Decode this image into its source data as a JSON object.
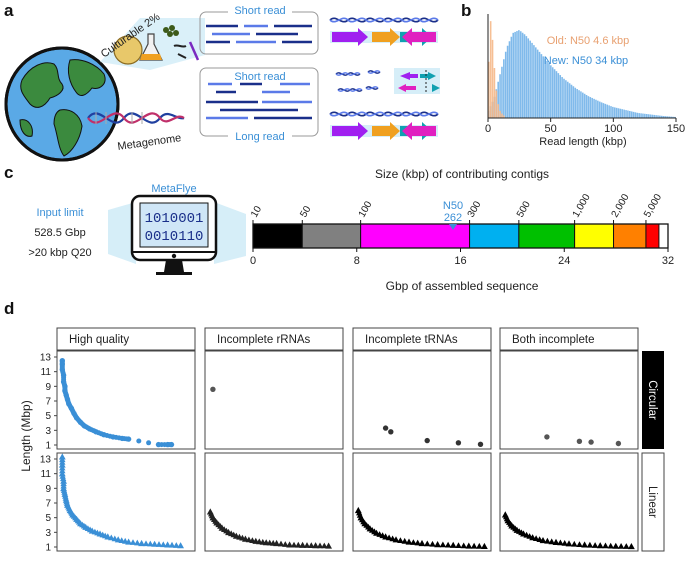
{
  "panels": {
    "a": {
      "label": "a",
      "culturable": "Culturable 2%",
      "metagenome": "Metagenome",
      "short_read_1": "Short read",
      "short_read_2": "Short read",
      "long_read": "Long read"
    },
    "b": {
      "label": "b",
      "legend_old": "Old: N50 4.6 kbp",
      "legend_new": "New: N50 34 kbp",
      "xlabel": "Read length (kbp)",
      "x_ticks": [
        "0",
        "50",
        "100",
        "150"
      ]
    },
    "c": {
      "label": "c",
      "input_limit": "Input limit",
      "input_gbp": "528.5 Gbp",
      "input_q": ">20 kbp Q20",
      "software": "MetaFlye",
      "binary_1": "1010001",
      "binary_2": "0010110",
      "top_title": "Size (kbp) of contributing contigs",
      "n50_label": "N50",
      "n50_value": "262",
      "xlabel": "Gbp of assembled sequence"
    },
    "d": {
      "label": "d",
      "ylabel": "Length (Mbp)",
      "y_ticks": [
        "13",
        "11",
        "9",
        "7",
        "5",
        "3",
        "1"
      ],
      "columns": [
        "High quality",
        "Incomplete rRNAs",
        "Incomplete tRNAs",
        "Both incomplete"
      ],
      "rows": [
        "Circular",
        "Linear"
      ]
    }
  },
  "colors": {
    "blue": "#3a8fd6",
    "light_blue": "#6aaee8",
    "orange": "#f5b888",
    "black": "#000000",
    "gray": "#808080",
    "magenta": "#ff00ff",
    "cyan": "#00b0f0",
    "green": "#00c000",
    "yellow": "#ffff00",
    "orange_bar": "#ff8000",
    "red": "#ff0000"
  },
  "chart_data": [
    {
      "type": "area",
      "panel": "b",
      "xlabel": "Read length (kbp)",
      "xlim": [
        0,
        150
      ],
      "series": [
        {
          "name": "Old: N50 4.6 kbp",
          "x": [
            0,
            2,
            4,
            6,
            8,
            10,
            14
          ],
          "y": [
            0.3,
            1.0,
            0.75,
            0.35,
            0.15,
            0.06,
            0.01
          ]
        },
        {
          "name": "New: N50 34 kbp",
          "x": [
            0,
            5,
            10,
            15,
            20,
            25,
            30,
            40,
            50,
            60,
            70,
            80,
            90,
            100,
            110,
            120,
            130,
            140,
            150
          ],
          "y": [
            0.05,
            0.2,
            0.45,
            0.7,
            0.85,
            0.88,
            0.83,
            0.68,
            0.53,
            0.4,
            0.3,
            0.22,
            0.16,
            0.11,
            0.08,
            0.05,
            0.035,
            0.02,
            0.01
          ]
        }
      ]
    },
    {
      "type": "bar",
      "panel": "c",
      "title": "Size (kbp) of contributing contigs",
      "xlabel": "Gbp of assembled sequence",
      "xlim": [
        0,
        32
      ],
      "x_ticks": [
        0,
        8,
        16,
        24,
        32
      ],
      "top_tick_labels": [
        "10",
        "50",
        "100",
        "300",
        "500",
        "1,000",
        "2,000",
        "5,000"
      ],
      "segments": [
        {
          "start": 0,
          "end": 3.8,
          "color": "#000000"
        },
        {
          "start": 3.8,
          "end": 8.3,
          "color": "#808080"
        },
        {
          "start": 8.3,
          "end": 16.7,
          "color": "#ff00ff"
        },
        {
          "start": 16.7,
          "end": 20.5,
          "color": "#00b0f0"
        },
        {
          "start": 20.5,
          "end": 24.8,
          "color": "#00c000"
        },
        {
          "start": 24.8,
          "end": 27.8,
          "color": "#ffff00"
        },
        {
          "start": 27.8,
          "end": 30.3,
          "color": "#ff8000"
        },
        {
          "start": 30.3,
          "end": 31.3,
          "color": "#ff0000"
        }
      ],
      "n50": 262
    },
    {
      "type": "scatter",
      "panel": "d",
      "ylabel": "Length (Mbp)",
      "ylim": [
        1,
        13
      ],
      "facets": [
        {
          "column": "High quality",
          "row": "Circular",
          "marker": "circle",
          "color": "#3a8fd6",
          "points": [
            [
              1,
              12.5
            ],
            [
              1,
              12.0
            ],
            [
              1,
              11.3
            ],
            [
              2,
              10.5
            ],
            [
              2,
              9.6
            ],
            [
              3,
              9.0
            ],
            [
              3,
              8.4
            ],
            [
              4,
              7.8
            ],
            [
              5,
              7.2
            ],
            [
              6,
              6.6
            ],
            [
              8,
              6.0
            ],
            [
              10,
              5.3
            ],
            [
              12,
              4.7
            ],
            [
              15,
              4.1
            ],
            [
              18,
              3.6
            ],
            [
              22,
              3.2
            ],
            [
              27,
              2.8
            ],
            [
              33,
              2.4
            ],
            [
              40,
              2.1
            ],
            [
              47,
              1.9
            ],
            [
              52,
              1.8
            ],
            [
              75,
              1.05
            ],
            [
              82,
              1.05
            ],
            [
              85,
              1.05
            ]
          ]
        },
        {
          "column": "Incomplete rRNAs",
          "row": "Circular",
          "marker": "circle",
          "color": "#555555",
          "points": [
            [
              3,
              8.6
            ]
          ]
        },
        {
          "column": "Incomplete tRNAs",
          "row": "Circular",
          "marker": "circle",
          "color": "#333333",
          "points": [
            [
              22,
              3.3
            ],
            [
              26,
              2.8
            ],
            [
              54,
              1.6
            ],
            [
              78,
              1.3
            ],
            [
              95,
              1.1
            ]
          ]
        },
        {
          "column": "Both incomplete",
          "row": "Circular",
          "marker": "circle",
          "color": "#555555",
          "points": [
            [
              33,
              2.1
            ],
            [
              58,
              1.5
            ],
            [
              67,
              1.4
            ],
            [
              88,
              1.2
            ]
          ]
        },
        {
          "column": "High quality",
          "row": "Linear",
          "marker": "triangle",
          "color": "#3a8fd6",
          "points": [
            [
              1,
              13.3
            ],
            [
              1,
              12.2
            ],
            [
              1,
              11.0
            ],
            [
              2,
              10.0
            ],
            [
              2,
              9.0
            ],
            [
              3,
              8.2
            ],
            [
              4,
              7.4
            ],
            [
              5,
              6.7
            ],
            [
              7,
              6.0
            ],
            [
              9,
              5.4
            ],
            [
              12,
              4.8
            ],
            [
              15,
              4.2
            ],
            [
              19,
              3.7
            ],
            [
              24,
              3.2
            ],
            [
              30,
              2.8
            ],
            [
              36,
              2.4
            ],
            [
              44,
              2.0
            ],
            [
              52,
              1.7
            ],
            [
              62,
              1.5
            ],
            [
              72,
              1.4
            ],
            [
              82,
              1.3
            ],
            [
              92,
              1.2
            ]
          ]
        },
        {
          "column": "Incomplete rRNAs",
          "row": "Linear",
          "marker": "triangle",
          "color": "#222222",
          "points": [
            [
              1,
              5.8
            ],
            [
              3,
              5.0
            ],
            [
              6,
              4.3
            ],
            [
              10,
              3.6
            ],
            [
              15,
              3.0
            ],
            [
              21,
              2.5
            ],
            [
              28,
              2.1
            ],
            [
              36,
              1.8
            ],
            [
              44,
              1.6
            ],
            [
              52,
              1.5
            ],
            [
              62,
              1.3
            ],
            [
              72,
              1.25
            ],
            [
              82,
              1.2
            ],
            [
              92,
              1.15
            ]
          ]
        },
        {
          "column": "Incomplete tRNAs",
          "row": "Linear",
          "marker": "triangle",
          "color": "#000000",
          "points": [
            [
              1,
              6.0
            ],
            [
              3,
              5.0
            ],
            [
              6,
              4.2
            ],
            [
              10,
              3.5
            ],
            [
              15,
              2.9
            ],
            [
              22,
              2.4
            ],
            [
              30,
              2.0
            ],
            [
              40,
              1.7
            ],
            [
              50,
              1.5
            ],
            [
              62,
              1.35
            ],
            [
              74,
              1.25
            ],
            [
              86,
              1.15
            ],
            [
              98,
              1.1
            ]
          ]
        },
        {
          "column": "Both incomplete",
          "row": "Linear",
          "marker": "triangle",
          "color": "#000000",
          "points": [
            [
              1,
              5.4
            ],
            [
              3,
              4.6
            ],
            [
              6,
              3.9
            ],
            [
              10,
              3.3
            ],
            [
              15,
              2.8
            ],
            [
              22,
              2.3
            ],
            [
              30,
              1.9
            ],
            [
              40,
              1.65
            ],
            [
              50,
              1.45
            ],
            [
              62,
              1.3
            ],
            [
              74,
              1.2
            ],
            [
              86,
              1.12
            ],
            [
              98,
              1.08
            ]
          ]
        }
      ]
    }
  ]
}
